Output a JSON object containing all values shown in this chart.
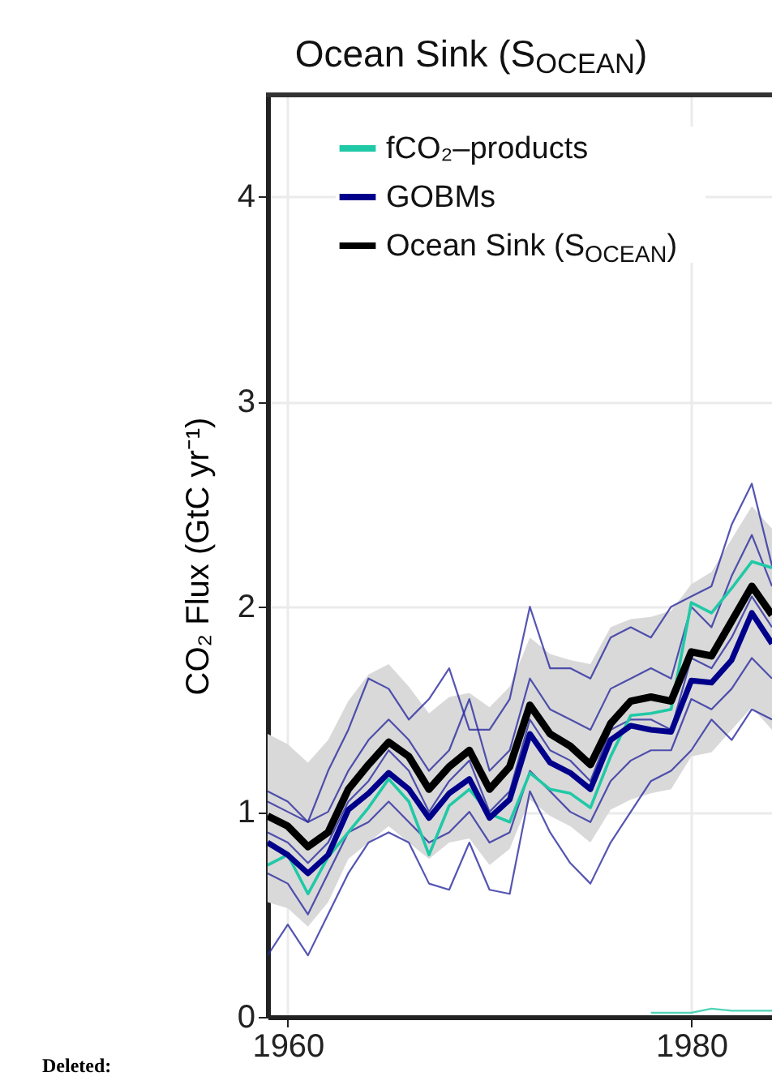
{
  "chart_data": {
    "type": "line",
    "title": "Ocean Sink (S$_{OCEAN}$)",
    "ylabel": "CO₂ Flux (GtC yr⁻¹)",
    "annotations": [
      "Deleted:"
    ],
    "x": [
      1959,
      1960,
      1961,
      1962,
      1963,
      1964,
      1965,
      1966,
      1967,
      1968,
      1969,
      1970,
      1971,
      1972,
      1973,
      1974,
      1975,
      1976,
      1977,
      1978,
      1979,
      1980,
      1981,
      1982,
      1983,
      1984
    ],
    "series": [
      {
        "color": "#2a2aa0",
        "values": [
          1.05,
          1.0,
          0.95,
          1.2,
          1.4,
          1.65,
          1.6,
          1.45,
          1.55,
          1.7,
          1.4,
          1.4,
          1.55,
          2.0,
          1.7,
          1.7,
          1.65,
          1.85,
          1.9,
          1.85,
          2.0,
          2.05,
          2.1,
          2.4,
          2.6,
          2.2
        ]
      },
      {
        "color": "#2a2aa0",
        "values": [
          0.3,
          0.45,
          0.3,
          0.5,
          0.7,
          0.85,
          0.9,
          0.85,
          0.65,
          0.62,
          0.85,
          0.62,
          0.6,
          1.1,
          0.9,
          0.75,
          0.65,
          0.85,
          1.0,
          1.15,
          1.2,
          1.3,
          1.45,
          1.35,
          1.5,
          1.45
        ]
      },
      {
        "color": "#2a2aa0",
        "values": [
          0.9,
          0.85,
          0.75,
          0.85,
          1.05,
          1.15,
          1.3,
          1.2,
          1.0,
          1.15,
          1.25,
          1.0,
          1.1,
          1.45,
          1.3,
          1.25,
          1.15,
          1.4,
          1.45,
          1.45,
          1.4,
          1.75,
          1.7,
          1.85,
          2.05,
          1.9
        ]
      },
      {
        "color": "#2a2aa0",
        "values": [
          0.7,
          0.65,
          0.5,
          0.7,
          0.9,
          0.95,
          1.05,
          0.95,
          0.85,
          0.9,
          1.0,
          0.85,
          0.9,
          1.2,
          1.1,
          1.0,
          0.95,
          1.15,
          1.25,
          1.3,
          1.3,
          1.55,
          1.5,
          1.6,
          1.75,
          1.65
        ]
      },
      {
        "color": "#2a2aa0",
        "values": [
          1.1,
          1.05,
          0.95,
          1.0,
          1.2,
          1.35,
          1.45,
          1.35,
          1.2,
          1.3,
          1.55,
          1.2,
          1.3,
          1.65,
          1.5,
          1.45,
          1.4,
          1.6,
          1.65,
          1.7,
          1.65,
          2.0,
          1.9,
          2.15,
          2.35,
          2.1
        ]
      },
      {
        "color": "#20c9a6",
        "x": [
          1978,
          1979,
          1980,
          1981,
          1982,
          1983,
          1984
        ],
        "values": [
          0.02,
          0.02,
          0.02,
          0.04,
          0.03,
          0.03,
          0.03
        ]
      },
      {
        "name": "fCO₂–products",
        "color": "#20c9a6",
        "values": [
          0.74,
          0.79,
          0.6,
          0.78,
          0.9,
          1.02,
          1.16,
          1.05,
          0.79,
          1.03,
          1.11,
          0.99,
          0.95,
          1.19,
          1.11,
          1.09,
          1.02,
          1.27,
          1.47,
          1.48,
          1.5,
          2.02,
          1.97,
          2.09,
          2.22,
          2.19
        ]
      },
      {
        "name": "GOBMs",
        "color": "#00008b",
        "values": [
          0.85,
          0.79,
          0.7,
          0.79,
          1.01,
          1.09,
          1.19,
          1.11,
          0.97,
          1.09,
          1.16,
          0.97,
          1.06,
          1.38,
          1.24,
          1.19,
          1.11,
          1.35,
          1.42,
          1.4,
          1.39,
          1.64,
          1.63,
          1.74,
          1.97,
          1.82
        ]
      },
      {
        "name": "Ocean Sink (S$_{OCEAN}$)",
        "color": "#000000",
        "values": [
          0.98,
          0.93,
          0.83,
          0.9,
          1.11,
          1.23,
          1.34,
          1.27,
          1.11,
          1.22,
          1.3,
          1.11,
          1.22,
          1.52,
          1.38,
          1.32,
          1.23,
          1.43,
          1.54,
          1.56,
          1.54,
          1.78,
          1.76,
          1.93,
          2.1,
          1.96
        ],
        "lower": [
          0.56,
          0.53,
          0.44,
          0.56,
          0.77,
          0.85,
          0.93,
          0.85,
          0.77,
          0.85,
          0.87,
          0.74,
          0.82,
          1.06,
          0.98,
          0.93,
          0.85,
          1.01,
          1.06,
          1.09,
          1.11,
          1.27,
          1.29,
          1.4,
          1.51,
          1.4
        ],
        "upper": [
          1.38,
          1.33,
          1.24,
          1.35,
          1.54,
          1.67,
          1.72,
          1.61,
          1.48,
          1.56,
          1.58,
          1.51,
          1.61,
          1.85,
          1.77,
          1.74,
          1.72,
          1.9,
          1.94,
          1.95,
          1.98,
          2.11,
          2.17,
          2.33,
          2.49,
          2.38
        ]
      }
    ],
    "xlim": [
      1959,
      1984
    ],
    "xticks": [
      1960,
      1980
    ],
    "ylim": [
      0,
      4.5
    ],
    "yticks": [
      0,
      1,
      2,
      3,
      4
    ],
    "grid": true,
    "legend": "top left"
  }
}
